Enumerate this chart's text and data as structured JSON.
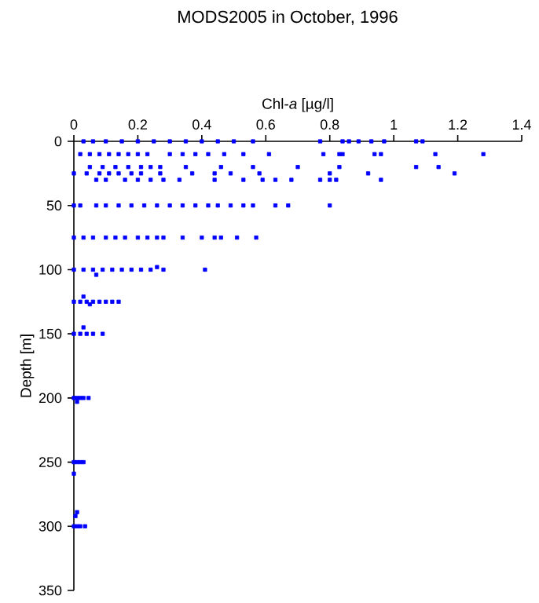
{
  "chart_data": {
    "type": "scatter",
    "title": "MODS2005 in October, 1996",
    "xlabel": "Chl-*a* [µg/l]",
    "ylabel": "Depth [m]",
    "xlim": [
      0,
      1.4
    ],
    "ylim": [
      350,
      0
    ],
    "xticks": [
      0,
      0.2,
      0.4,
      0.6,
      0.8,
      1,
      1.2,
      1.4
    ],
    "yticks": [
      0,
      50,
      100,
      150,
      200,
      250,
      300,
      350
    ],
    "marker": "square",
    "series": [
      {
        "color": "#0000ff",
        "x": [
          0.03,
          0.06,
          0.1,
          0.15,
          0.2,
          0.25,
          0.3,
          0.35,
          0.4,
          0.45,
          0.5,
          0.56,
          0.77,
          0.84,
          0.86,
          0.89,
          0.93,
          0.97,
          1.07,
          1.09,
          0.02,
          0.05,
          0.08,
          0.11,
          0.14,
          0.17,
          0.2,
          0.23,
          0.3,
          0.34,
          0.38,
          0.42,
          0.47,
          0.53,
          0.61,
          0.78,
          0.83,
          0.84,
          0.94,
          0.96,
          1.13,
          1.28,
          0.05,
          0.09,
          0.13,
          0.17,
          0.21,
          0.24,
          0.27,
          0.35,
          0.46,
          0.56,
          0.7,
          0.83,
          1.07,
          1.14,
          0,
          0.04,
          0.08,
          0.11,
          0.14,
          0.18,
          0.21,
          0.27,
          0.37,
          0.44,
          0.49,
          0.58,
          0.8,
          0.92,
          1.19,
          0.07,
          0.1,
          0.16,
          0.2,
          0.24,
          0.28,
          0.33,
          0.44,
          0.53,
          0.59,
          0.63,
          0.68,
          0.77,
          0.8,
          0.82,
          0.96,
          0,
          0.02,
          0.07,
          0.1,
          0.14,
          0.18,
          0.22,
          0.26,
          0.3,
          0.34,
          0.38,
          0.42,
          0.45,
          0.49,
          0.53,
          0.56,
          0.63,
          0.67,
          0.8,
          0,
          0.03,
          0.06,
          0.1,
          0.13,
          0.16,
          0.2,
          0.23,
          0.26,
          0.28,
          0.34,
          0.4,
          0.44,
          0.46,
          0.51,
          0.57,
          0,
          0.03,
          0.06,
          0.09,
          0.12,
          0.15,
          0.18,
          0.21,
          0.24,
          0.28,
          0.41,
          0.26,
          0.07,
          0,
          0.02,
          0.04,
          0.06,
          0.08,
          0.1,
          0.12,
          0.14,
          0.03,
          0.05,
          0,
          0.02,
          0.04,
          0.06,
          0.09,
          0.03,
          0,
          0.01,
          0.02,
          0.03,
          0.046,
          0.01,
          0,
          0.01,
          0.02,
          0.03,
          0,
          0,
          0.01,
          0.02,
          0.035,
          0.01,
          0.005
        ],
        "values": [
          0,
          0,
          0,
          0,
          0,
          0,
          0,
          0,
          0,
          0,
          0,
          0,
          0,
          0,
          0,
          0,
          0,
          0,
          0,
          0,
          10,
          10,
          10,
          10,
          10,
          10,
          10,
          10,
          10,
          10,
          10,
          10,
          10,
          10,
          10,
          10,
          10,
          10,
          10,
          10,
          10,
          10,
          20,
          20,
          20,
          20,
          20,
          20,
          20,
          20,
          20,
          20,
          20,
          20,
          20,
          20,
          25,
          25,
          25,
          25,
          25,
          25,
          25,
          25,
          25,
          25,
          25,
          25,
          25,
          25,
          25,
          30,
          30,
          30,
          30,
          30,
          30,
          30,
          30,
          30,
          30,
          30,
          30,
          30,
          30,
          30,
          30,
          50,
          50,
          50,
          50,
          50,
          50,
          50,
          50,
          50,
          50,
          50,
          50,
          50,
          50,
          50,
          50,
          50,
          50,
          50,
          75,
          75,
          75,
          75,
          75,
          75,
          75,
          75,
          75,
          75,
          75,
          75,
          75,
          75,
          75,
          75,
          100,
          100,
          100,
          100,
          100,
          100,
          100,
          100,
          100,
          100,
          100,
          98,
          104,
          125,
          125,
          125,
          125,
          125,
          125,
          125,
          125,
          121,
          127,
          150,
          150,
          150,
          150,
          150,
          145,
          200,
          200,
          200,
          200,
          200,
          203,
          250,
          250,
          250,
          250,
          259,
          300,
          300,
          300,
          300,
          289,
          292
        ]
      }
    ]
  }
}
